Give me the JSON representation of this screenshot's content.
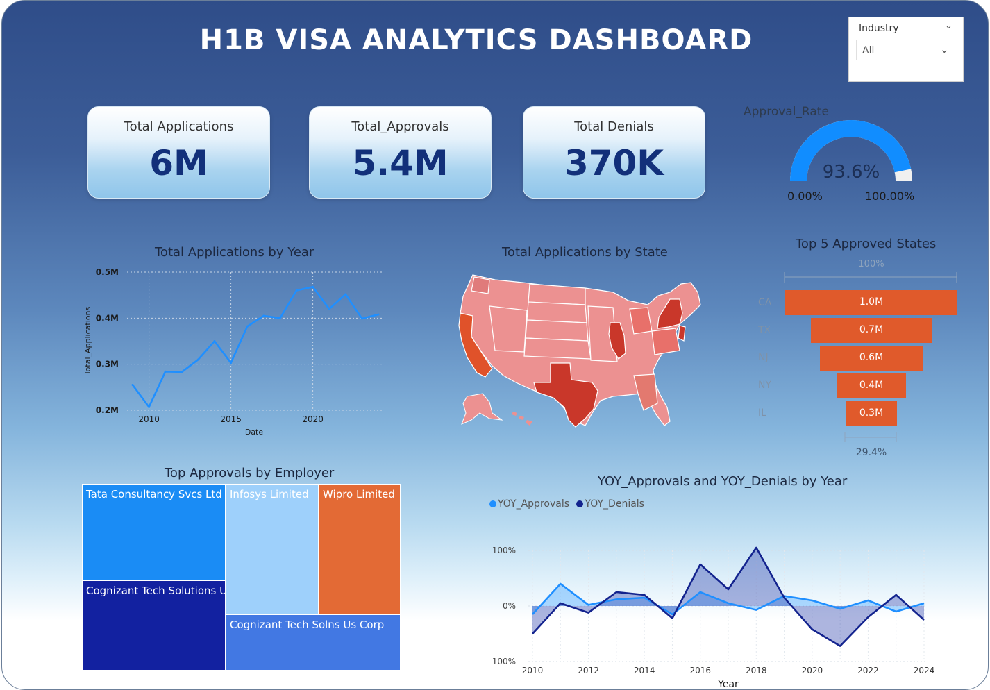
{
  "title": "H1B VISA ANALYTICS DASHBOARD",
  "slicer": {
    "label": "Industry",
    "value": "All"
  },
  "cards": {
    "applications": {
      "label": "Total Applications",
      "value": "6M"
    },
    "approvals": {
      "label": "Total_Approvals",
      "value": "5.4M"
    },
    "denials": {
      "label": "Total Denials",
      "value": "370K"
    }
  },
  "gauge": {
    "title": "Approval_Rate",
    "value_text": "93.6%",
    "value": 0.936,
    "min_label": "0.00%",
    "max_label": "100.00%",
    "fill_color": "#118dff",
    "track_color": "#f0f0f0"
  },
  "colors": {
    "orange": "#e05a2b",
    "line_blue": "#1f8fff",
    "dark_navy": "#102599",
    "map_state": "#ec9191"
  },
  "chart_data": [
    {
      "type": "line",
      "title": "Total Applications by Year",
      "xlabel": "Date",
      "ylabel": "Total_Applications",
      "x": [
        2009,
        2010,
        2011,
        2012,
        2013,
        2014,
        2015,
        2016,
        2017,
        2018,
        2019,
        2020,
        2021,
        2022,
        2023,
        2024
      ],
      "y": [
        255000,
        207000,
        284000,
        283000,
        310000,
        350000,
        303000,
        382000,
        405000,
        400000,
        460000,
        468000,
        420000,
        452000,
        399000,
        408000
      ],
      "xticks": [
        "2010",
        "2015",
        "2020"
      ],
      "xtick_values": [
        2010,
        2015,
        2020
      ],
      "yticks": [
        "0.2M",
        "0.3M",
        "0.4M",
        "0.5M"
      ],
      "ytick_values": [
        200000,
        300000,
        400000,
        500000
      ],
      "ylim": [
        200000,
        500000
      ],
      "xlim": [
        2009,
        2024
      ],
      "grid": true
    },
    {
      "type": "funnel",
      "title": "Top 5 Approved States",
      "categories": [
        "CA",
        "TX",
        "NJ",
        "NY",
        "IL"
      ],
      "values": [
        1.0,
        0.7,
        0.6,
        0.4,
        0.3
      ],
      "labels": [
        "1.0M",
        "0.7M",
        "0.6M",
        "0.4M",
        "0.3M"
      ],
      "top_percent": "100%",
      "bottom_percent": "29.4%"
    },
    {
      "type": "treemap",
      "title": "Top Approvals by Employer",
      "items": [
        {
          "name": "Tata Consultancy Svcs Ltd",
          "color": "#1a8cf5"
        },
        {
          "name": "Cognizant Tech Solutions U...",
          "color": "#1221a0"
        },
        {
          "name": "Infosys Limited",
          "color": "#9ed0fb"
        },
        {
          "name": "Wipro Limited",
          "color": "#e36a35"
        },
        {
          "name": "Cognizant Tech Solns Us Corp",
          "color": "#4278e3"
        }
      ]
    },
    {
      "type": "area",
      "title": "YOY_Approvals and YOY_Denials by Year",
      "xlabel": "Year",
      "x": [
        2010,
        2011,
        2012,
        2013,
        2014,
        2015,
        2016,
        2017,
        2018,
        2019,
        2020,
        2021,
        2022,
        2023,
        2024
      ],
      "series": [
        {
          "name": "YOY_Approvals",
          "color": "#1f8fff",
          "values": [
            -15,
            40,
            2,
            12,
            15,
            -15,
            25,
            5,
            -7,
            18,
            10,
            -5,
            10,
            -10,
            5
          ]
        },
        {
          "name": "YOY_Denials",
          "color": "#13238e",
          "values": [
            -50,
            5,
            -12,
            25,
            20,
            -22,
            75,
            30,
            105,
            15,
            -42,
            -72,
            -20,
            20,
            -25
          ]
        }
      ],
      "xticks": [
        "2010",
        "2012",
        "2014",
        "2016",
        "2018",
        "2020",
        "2022",
        "2024"
      ],
      "yticks": [
        "-100%",
        "0%",
        "100%"
      ],
      "ylim": [
        -100,
        100
      ]
    }
  ],
  "map": {
    "title": "Total Applications by State",
    "highlight_states": [
      "CA",
      "TX",
      "NY",
      "NJ",
      "IL"
    ]
  }
}
